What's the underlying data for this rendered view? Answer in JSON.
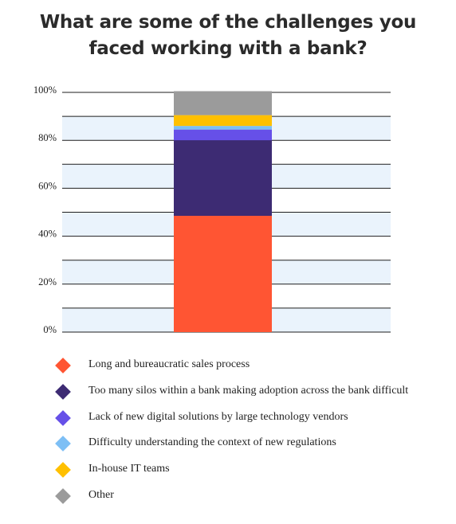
{
  "title_lines": [
    "What are some of the challenges you",
    "faced working with a bank?"
  ],
  "chart_data": {
    "type": "bar",
    "stacked": true,
    "categories": [
      ""
    ],
    "ylim": [
      0,
      100
    ],
    "yticks": [
      "0%",
      "20%",
      "40%",
      "60%",
      "80%",
      "100%"
    ],
    "grid": true,
    "legend_position": "bottom",
    "series": [
      {
        "name": "Long and bureaucratic sales process",
        "values": [
          48.5
        ],
        "color": "#FF5533"
      },
      {
        "name": "Too many silos within a bank making adoption across the bank difficult",
        "values": [
          31.5
        ],
        "color": "#3D2B73"
      },
      {
        "name": "Lack of new digital solutions by large technology vendors",
        "values": [
          4.5
        ],
        "color": "#6650E8"
      },
      {
        "name": "Difficulty understanding the context of new regulations",
        "values": [
          1.5
        ],
        "color": "#7DBFF5"
      },
      {
        "name": "In-house IT teams",
        "values": [
          4.5
        ],
        "color": "#FFC000"
      },
      {
        "name": "Other",
        "values": [
          10
        ],
        "color": "#9B9B9B"
      }
    ]
  }
}
